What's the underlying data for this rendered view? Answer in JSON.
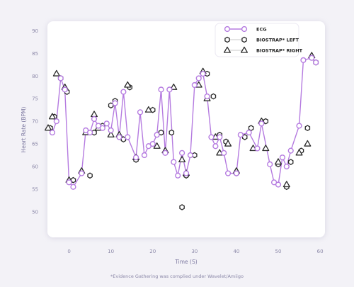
{
  "chart_data": {
    "type": "line",
    "xlabel": "Time (S)",
    "ylabel": "Heart Rate (BPM)",
    "xlim": [
      -5,
      61
    ],
    "ylim": [
      47,
      91
    ],
    "x_ticks": [
      0,
      10,
      20,
      30,
      40,
      50,
      60
    ],
    "y_ticks": [
      50,
      55,
      60,
      65,
      70,
      75,
      80,
      85,
      90
    ],
    "grid": false,
    "legend_position": "top-right",
    "footnote": "*Evidence Gathering was complied under Wavelet/Amiigo",
    "colors": {
      "ecg": "#b57be0",
      "marker_stroke": "#2a2a2a",
      "background": "#f3f2f7",
      "panel": "#ffffff"
    },
    "series": [
      {
        "name": "ECG",
        "style": "line-circle",
        "x": [
          -4,
          -3,
          -2,
          -1,
          0,
          1,
          3,
          4,
          5,
          6,
          7,
          8,
          9,
          10,
          11,
          12,
          13,
          14,
          16,
          17,
          18,
          19,
          20,
          21,
          22,
          23,
          24,
          25,
          26,
          27,
          28,
          29,
          30,
          31,
          32,
          33,
          34,
          35,
          36,
          37,
          38,
          40,
          41,
          43,
          45,
          46,
          48,
          49,
          50,
          51,
          52,
          53,
          55,
          56,
          58,
          59
        ],
        "y": [
          67.5,
          70,
          79.5,
          77,
          56.5,
          55.5,
          58.5,
          68,
          67.5,
          70.5,
          69,
          68.5,
          69.5,
          68,
          74,
          66.5,
          76.5,
          66.5,
          62,
          72,
          62.5,
          64.5,
          65,
          67,
          77,
          63,
          77,
          61,
          58,
          63,
          58.5,
          62.5,
          78,
          79.5,
          80.5,
          75.5,
          66.5,
          64.5,
          66.5,
          63,
          58.5,
          58.5,
          67,
          67.5,
          64,
          69.5,
          60.5,
          56.5,
          56,
          62,
          60,
          63.5,
          69,
          83.5,
          84,
          83
        ]
      },
      {
        "name": "BIOSTRAP* LEFT",
        "style": "hexagon",
        "x": [
          -4.5,
          -3.5,
          -2,
          -0.5,
          1,
          5,
          6,
          8,
          10,
          11,
          13,
          14.5,
          16,
          20,
          22,
          24.5,
          27,
          28,
          30,
          33,
          34.5,
          36,
          37.5,
          40,
          42,
          43.5,
          47,
          50,
          52,
          53,
          55.5,
          57,
          59
        ],
        "y": [
          68.5,
          71,
          79.5,
          76.5,
          57,
          58,
          67.5,
          69,
          73.5,
          74.5,
          66,
          77.5,
          61.5,
          72.5,
          67.5,
          67.5,
          51,
          58,
          62.5,
          80.5,
          75.5,
          67,
          65.5,
          58.5,
          66.5,
          68.5,
          70,
          60.5,
          55.5,
          61,
          63.5,
          68.5,
          83
        ]
      },
      {
        "name": "BIOSTRAP* RIGHT",
        "style": "triangle",
        "x": [
          -5,
          -4,
          -3,
          -1,
          0,
          3,
          4,
          6,
          7,
          10,
          12,
          14,
          16,
          19,
          21,
          23,
          25,
          27,
          28,
          31,
          32,
          33,
          35,
          36,
          38,
          40,
          44,
          46,
          47,
          50,
          52,
          55,
          57,
          58
        ],
        "y": [
          68.5,
          71,
          80.5,
          77.5,
          57,
          59,
          67.5,
          71.5,
          68.5,
          67,
          67,
          78,
          62,
          72.5,
          64.5,
          63.5,
          77.5,
          61.5,
          58.5,
          78,
          81,
          75,
          66.5,
          63,
          65,
          59,
          64,
          70,
          64,
          61,
          56,
          63,
          65,
          84.5
        ]
      }
    ]
  }
}
